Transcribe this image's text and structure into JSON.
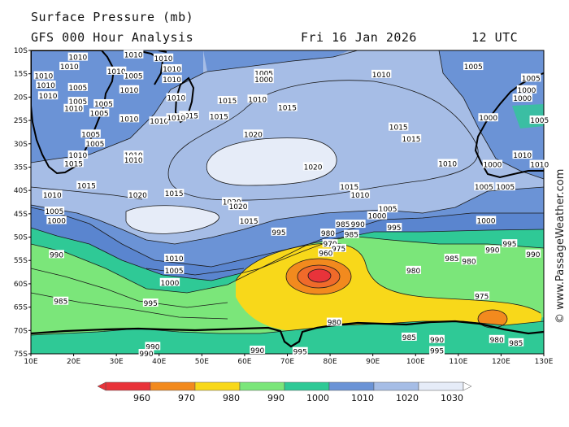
{
  "header": {
    "line1": "Surface Pressure (mb)",
    "line2": "GFS 000 Hour Analysis",
    "date": "Fri 16 Jan 2026",
    "time": "12 UTC"
  },
  "credit": "© www.PassageWeather.com",
  "axes": {
    "lat_labels": [
      "10S",
      "15S",
      "20S",
      "25S",
      "30S",
      "35S",
      "40S",
      "45S",
      "50S",
      "55S",
      "60S",
      "65S",
      "70S",
      "75S"
    ],
    "lon_labels": [
      "10E",
      "20E",
      "30E",
      "40E",
      "50E",
      "60E",
      "70E",
      "80E",
      "90E",
      "100E",
      "110E",
      "120E",
      "130E"
    ]
  },
  "colorbar": {
    "ticks": [
      "960",
      "970",
      "980",
      "990",
      "1000",
      "1010",
      "1020",
      "1030"
    ],
    "colors": [
      "#e8333a",
      "#f28a1e",
      "#f8d81a",
      "#7be67a",
      "#2fc996",
      "#6b93d6",
      "#a6bde6",
      "#e6ecf8"
    ]
  },
  "isobar_labels": [
    {
      "t": "1010",
      "lon": 21,
      "lat": -11.5
    },
    {
      "t": "1010",
      "lon": 41,
      "lat": -11.7
    },
    {
      "t": "1010",
      "lon": 34,
      "lat": -11
    },
    {
      "t": "1010",
      "lon": 19,
      "lat": -13.5
    },
    {
      "t": "1010",
      "lon": 13,
      "lat": -15.5
    },
    {
      "t": "1010",
      "lon": 30,
      "lat": -14.5
    },
    {
      "t": "1005",
      "lon": 34,
      "lat": -15.5
    },
    {
      "t": "1010",
      "lon": 43,
      "lat": -14
    },
    {
      "t": "1010",
      "lon": 43,
      "lat": -16.3
    },
    {
      "t": "1005",
      "lon": 64.5,
      "lat": -15
    },
    {
      "t": "1000",
      "lon": 64.5,
      "lat": -16.3
    },
    {
      "t": "1010",
      "lon": 92,
      "lat": -15.2
    },
    {
      "t": "1005",
      "lon": 113.5,
      "lat": -13.5
    },
    {
      "t": "1010",
      "lon": 13.5,
      "lat": -17.5
    },
    {
      "t": "1005",
      "lon": 21,
      "lat": -18
    },
    {
      "t": "1010",
      "lon": 33,
      "lat": -18.5
    },
    {
      "t": "1010",
      "lon": 14,
      "lat": -19.8
    },
    {
      "t": "1010",
      "lon": 44,
      "lat": -20.2
    },
    {
      "t": "1015",
      "lon": 56,
      "lat": -20.8
    },
    {
      "t": "1010",
      "lon": 63,
      "lat": -20.5
    },
    {
      "t": "1005",
      "lon": 21,
      "lat": -21
    },
    {
      "t": "1005",
      "lon": 27,
      "lat": -21.5
    },
    {
      "t": "1010",
      "lon": 20,
      "lat": -22.5
    },
    {
      "t": "1005",
      "lon": 26,
      "lat": -23.5
    },
    {
      "t": "1015",
      "lon": 70,
      "lat": -22.3
    },
    {
      "t": "1015",
      "lon": 47,
      "lat": -24
    },
    {
      "t": "1010",
      "lon": 33,
      "lat": -24.7
    },
    {
      "t": "1010",
      "lon": 40,
      "lat": -25.2
    },
    {
      "t": "1010",
      "lon": 44,
      "lat": -24.5
    },
    {
      "t": "1015",
      "lon": 54,
      "lat": -24.2
    },
    {
      "t": "1000",
      "lon": 117,
      "lat": -24.5
    },
    {
      "t": "1015",
      "lon": 96,
      "lat": -26.5
    },
    {
      "t": "1005",
      "lon": 24,
      "lat": -28
    },
    {
      "t": "1005",
      "lon": 25,
      "lat": -30
    },
    {
      "t": "1020",
      "lon": 62,
      "lat": -28
    },
    {
      "t": "1015",
      "lon": 99,
      "lat": -29
    },
    {
      "t": "1010",
      "lon": 21,
      "lat": -32.5
    },
    {
      "t": "1010",
      "lon": 34,
      "lat": -32.5
    },
    {
      "t": "1010",
      "lon": 34,
      "lat": -33.5
    },
    {
      "t": "1015",
      "lon": 20,
      "lat": -34.3
    },
    {
      "t": "1020",
      "lon": 76,
      "lat": -35
    },
    {
      "t": "1010",
      "lon": 107.5,
      "lat": -34.3
    },
    {
      "t": "1000",
      "lon": 118,
      "lat": -34.5
    },
    {
      "t": "1015",
      "lon": 23,
      "lat": -39
    },
    {
      "t": "1015",
      "lon": 84.5,
      "lat": -39.3
    },
    {
      "t": "1005",
      "lon": 116,
      "lat": -39.3
    },
    {
      "t": "1005",
      "lon": 121,
      "lat": -39.3
    },
    {
      "t": "1010",
      "lon": 15,
      "lat": -41
    },
    {
      "t": "1020",
      "lon": 35,
      "lat": -41
    },
    {
      "t": "1015",
      "lon": 43.5,
      "lat": -40.7
    },
    {
      "t": "1010",
      "lon": 87,
      "lat": -41
    },
    {
      "t": "1020",
      "lon": 57,
      "lat": -42.5
    },
    {
      "t": "1020",
      "lon": 58.5,
      "lat": -43.5
    },
    {
      "t": "1005",
      "lon": 15.5,
      "lat": -44.5
    },
    {
      "t": "1005",
      "lon": 93.5,
      "lat": -44
    },
    {
      "t": "1000",
      "lon": 91,
      "lat": -45.5
    },
    {
      "t": "1000",
      "lon": 16,
      "lat": -46.5
    },
    {
      "t": "1015",
      "lon": 61,
      "lat": -46.6
    },
    {
      "t": "1000",
      "lon": 116.5,
      "lat": -46.5
    },
    {
      "t": "985",
      "lon": 83,
      "lat": -47.3
    },
    {
      "t": "990",
      "lon": 86.5,
      "lat": -47.3
    },
    {
      "t": "995",
      "lon": 95,
      "lat": -48
    },
    {
      "t": "995",
      "lon": 68,
      "lat": -49
    },
    {
      "t": "980",
      "lon": 79.5,
      "lat": -49.2
    },
    {
      "t": "985",
      "lon": 85,
      "lat": -49.5
    },
    {
      "t": "990",
      "lon": 118,
      "lat": -52.8
    },
    {
      "t": "995",
      "lon": 122,
      "lat": -51.5
    },
    {
      "t": "970",
      "lon": 80,
      "lat": -51.5
    },
    {
      "t": "975",
      "lon": 82,
      "lat": -52.5
    },
    {
      "t": "960",
      "lon": 79,
      "lat": -53.5
    },
    {
      "t": "985",
      "lon": 108.5,
      "lat": -54.6
    },
    {
      "t": "980",
      "lon": 112.5,
      "lat": -55.2
    },
    {
      "t": "990",
      "lon": 16,
      "lat": -53.8
    },
    {
      "t": "1010",
      "lon": 43.5,
      "lat": -54.6
    },
    {
      "t": "1005",
      "lon": 43.5,
      "lat": -57.2
    },
    {
      "t": "980",
      "lon": 99.5,
      "lat": -57.2
    },
    {
      "t": "1000",
      "lon": 42.5,
      "lat": -59.8
    },
    {
      "t": "985",
      "lon": 17,
      "lat": -63.8
    },
    {
      "t": "995",
      "lon": 38,
      "lat": -64.2
    },
    {
      "t": "975",
      "lon": 115.5,
      "lat": -62.7
    },
    {
      "t": "980",
      "lon": 81,
      "lat": -68.3
    },
    {
      "t": "985",
      "lon": 98.5,
      "lat": -71.5
    },
    {
      "t": "990",
      "lon": 105,
      "lat": -72
    },
    {
      "t": "980",
      "lon": 119,
      "lat": -72
    },
    {
      "t": "985",
      "lon": 123.5,
      "lat": -72.7
    },
    {
      "t": "990",
      "lon": 38.5,
      "lat": -73.5
    },
    {
      "t": "990",
      "lon": 37,
      "lat": -75
    },
    {
      "t": "990",
      "lon": 14,
      "lat": -75.5
    },
    {
      "t": "990",
      "lon": 63,
      "lat": -74.3
    },
    {
      "t": "995",
      "lon": 73,
      "lat": -74.6
    },
    {
      "t": "995",
      "lon": 105,
      "lat": -74.4
    },
    {
      "t": "1000",
      "lon": 124,
      "lat": -75.5
    },
    {
      "t": "995",
      "lon": 84,
      "lat": -77.5
    },
    {
      "t": "995",
      "lon": 58,
      "lat": -79.3
    },
    {
      "t": "1000",
      "lon": 107.5,
      "lat": -79.5
    },
    {
      "t": "1000",
      "lon": 116.5,
      "lat": -79.5
    },
    {
      "t": "1005",
      "lon": 127,
      "lat": -16
    },
    {
      "t": "1000",
      "lon": 126,
      "lat": -18.5
    },
    {
      "t": "1000",
      "lon": 125,
      "lat": -20.3
    },
    {
      "t": "1005",
      "lon": 129,
      "lat": -25
    },
    {
      "t": "1010",
      "lon": 125,
      "lat": -32.5
    },
    {
      "t": "1010",
      "lon": 129,
      "lat": -34.5
    },
    {
      "t": "990",
      "lon": 127.5,
      "lat": -53.7
    }
  ]
}
